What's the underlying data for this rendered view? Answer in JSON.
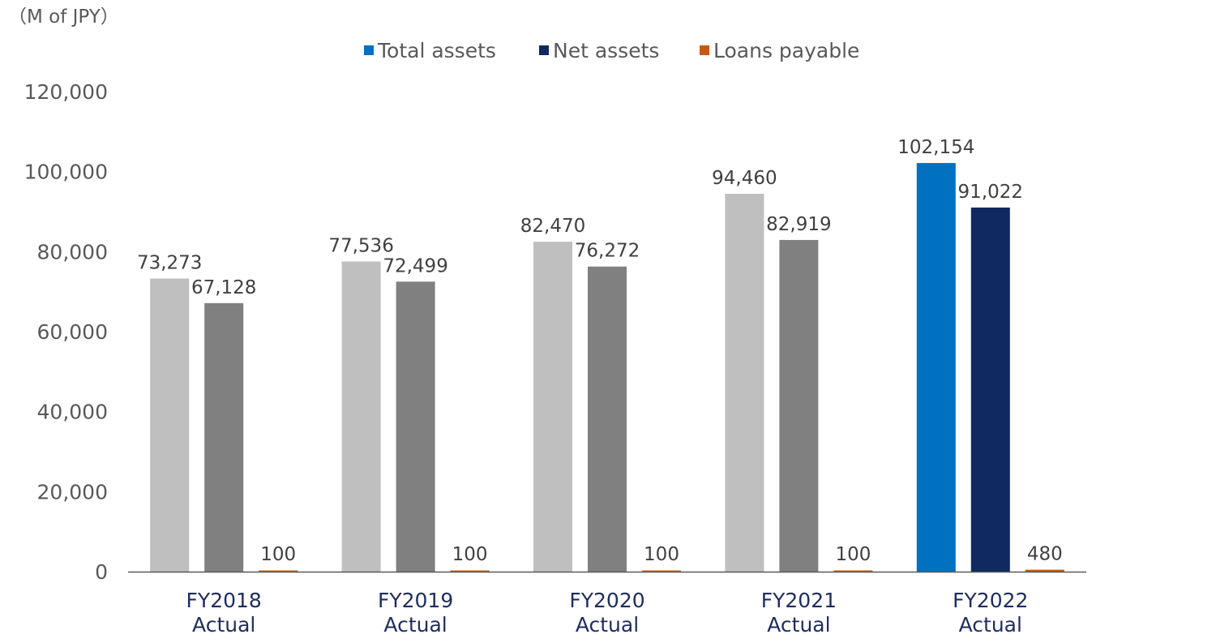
{
  "chart_data": {
    "type": "bar",
    "unit_label": "（M of JPY）",
    "categories": [
      [
        "FY2018",
        "Actual"
      ],
      [
        "FY2019",
        "Actual"
      ],
      [
        "FY2020",
        "Actual"
      ],
      [
        "FY2021",
        "Actual"
      ],
      [
        "FY2022",
        "Actual"
      ]
    ],
    "series": [
      {
        "name": "Total assets",
        "values": [
          73273,
          77536,
          82470,
          94460,
          102154
        ],
        "labels": [
          "73,273",
          "77,536",
          "82,470",
          "94,460",
          "102,154"
        ],
        "colors": [
          "#bfbfbf",
          "#bfbfbf",
          "#bfbfbf",
          "#bfbfbf",
          "#0070c0"
        ],
        "legend_color": "#0070c0"
      },
      {
        "name": "Net assets",
        "values": [
          67128,
          72499,
          76272,
          82919,
          91022
        ],
        "labels": [
          "67,128",
          "72,499",
          "76,272",
          "82,919",
          "91,022"
        ],
        "colors": [
          "#808080",
          "#808080",
          "#808080",
          "#808080",
          "#10295f"
        ],
        "legend_color": "#10295f"
      },
      {
        "name": "Loans payable",
        "values": [
          100,
          100,
          100,
          100,
          480
        ],
        "labels": [
          "100",
          "100",
          "100",
          "100",
          "480"
        ],
        "colors": [
          "#c55a11",
          "#c55a11",
          "#c55a11",
          "#c55a11",
          "#c55a11"
        ],
        "legend_color": "#c55a11"
      }
    ],
    "ylim": [
      0,
      120000
    ],
    "yticks": [
      0,
      20000,
      40000,
      60000,
      80000,
      100000,
      120000
    ],
    "ytick_labels": [
      "0",
      "20,000",
      "40,000",
      "60,000",
      "80,000",
      "100,000",
      "120,000"
    ],
    "grid": false,
    "legend_position": "top-center"
  }
}
